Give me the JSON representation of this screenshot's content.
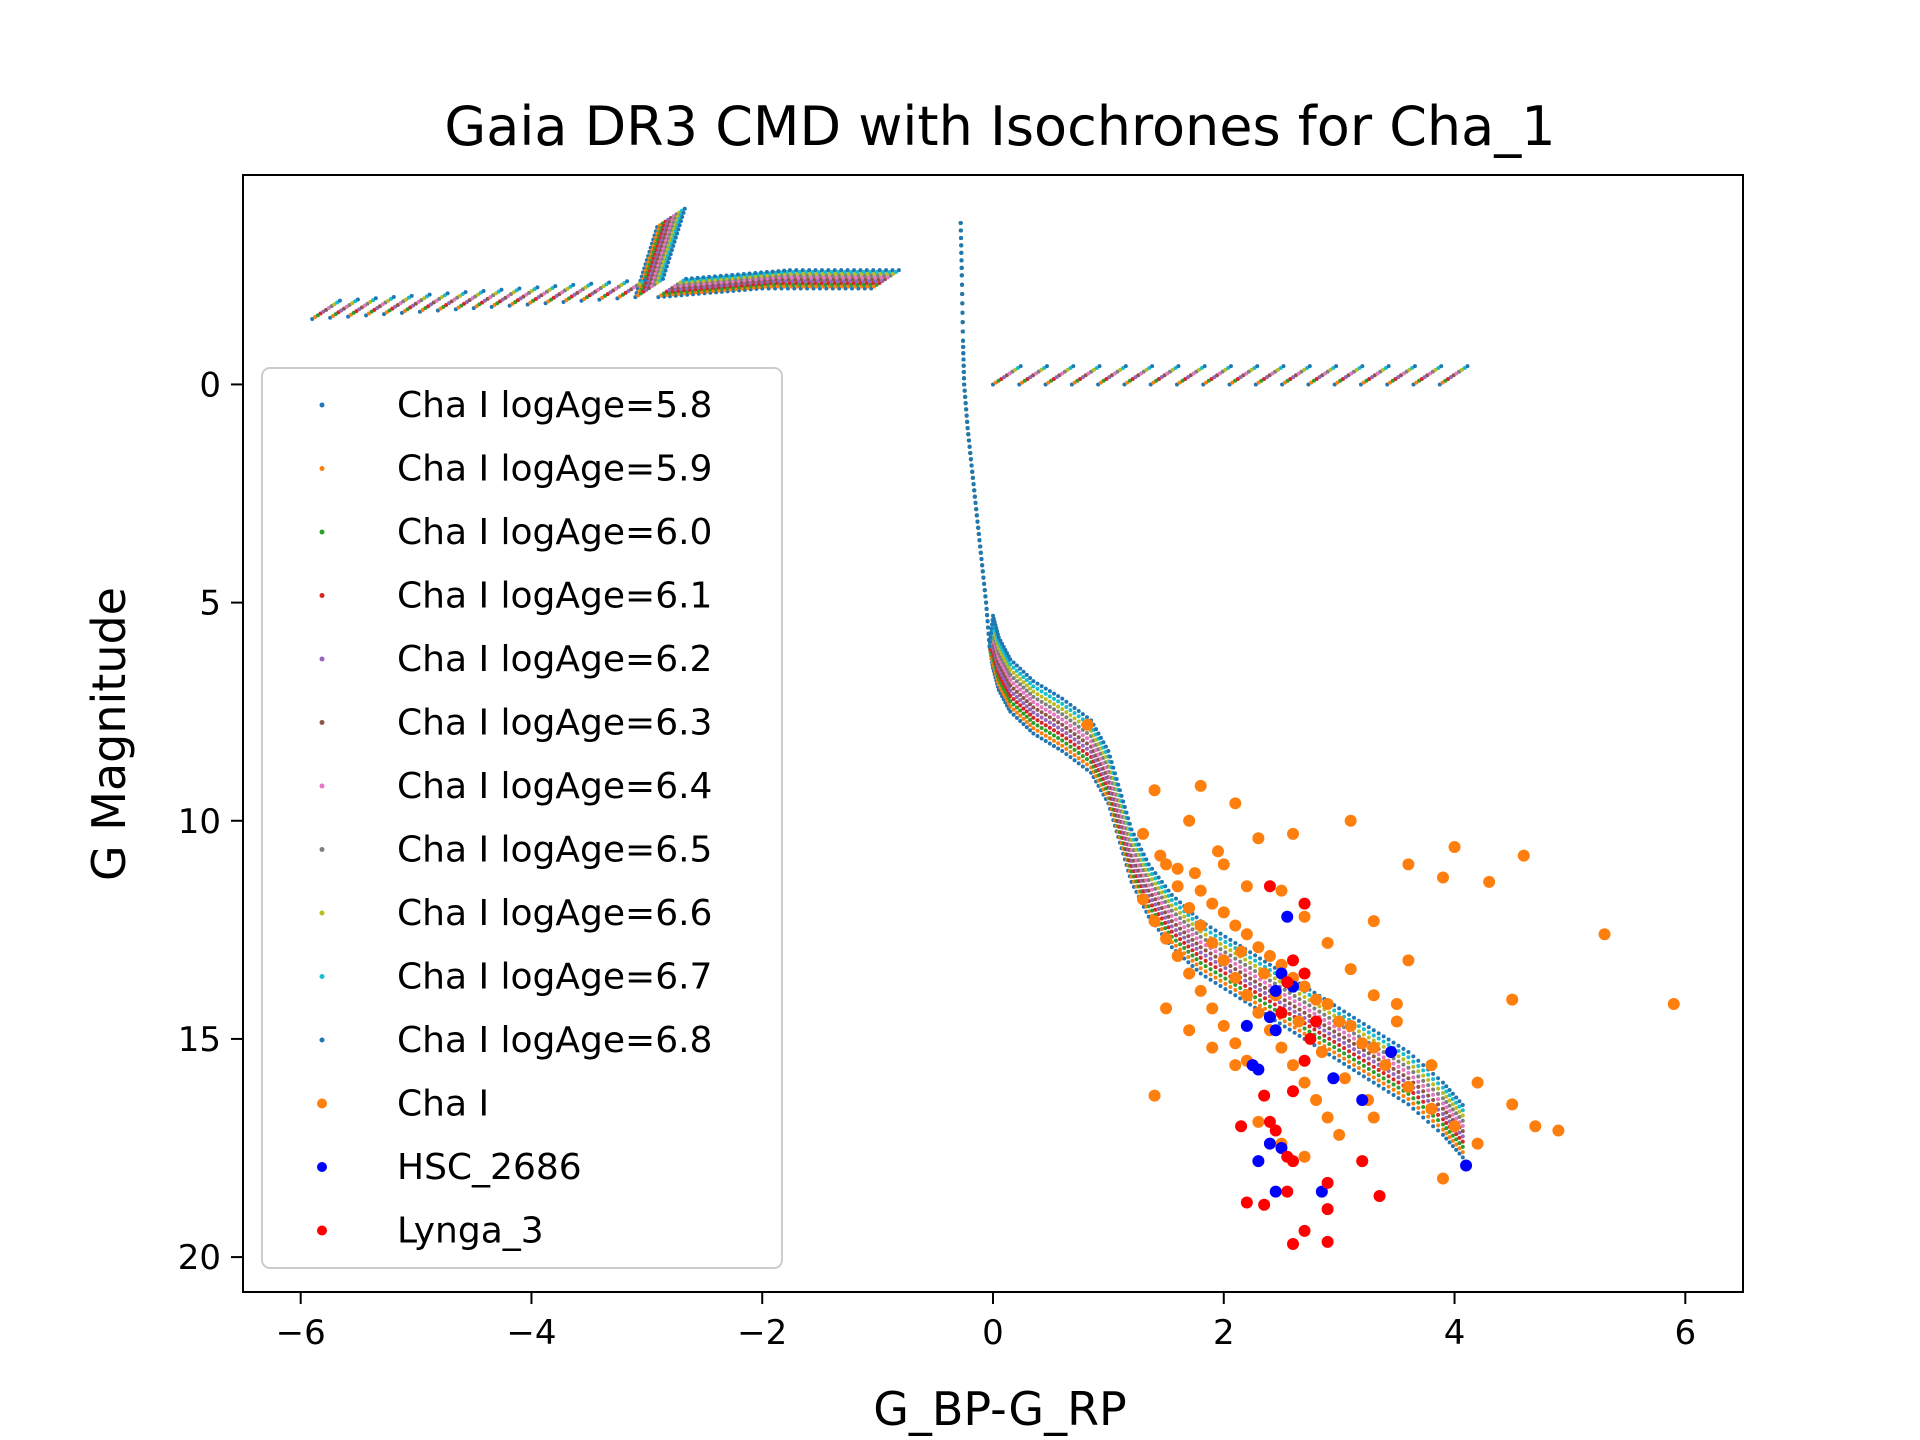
{
  "chart_data": {
    "type": "scatter",
    "title": "Gaia DR3 CMD with Isochrones for Cha_1",
    "xlabel": "G_BP-G_RP",
    "ylabel": "G Magnitude",
    "xlim": [
      -6.5,
      6.5
    ],
    "ylim": [
      20.8,
      -4.8
    ],
    "y_inverted": true,
    "xticks": [
      -6,
      -4,
      -2,
      0,
      2,
      4,
      6
    ],
    "xtick_labels": [
      "−6",
      "−4",
      "−2",
      "0",
      "2",
      "4",
      "6"
    ],
    "yticks": [
      0,
      5,
      10,
      15,
      20
    ],
    "ytick_labels": [
      "0",
      "5",
      "10",
      "15",
      "20"
    ],
    "grid": false,
    "legend_position": "left",
    "isochrones": [
      {
        "name": "Cha I logAge=5.8",
        "color": "#1f77b4",
        "shift": 0.0
      },
      {
        "name": "Cha I logAge=5.9",
        "color": "#ff7f0e",
        "shift": 0.12
      },
      {
        "name": "Cha I logAge=6.0",
        "color": "#2ca02c",
        "shift": 0.24
      },
      {
        "name": "Cha I logAge=6.1",
        "color": "#d62728",
        "shift": 0.36
      },
      {
        "name": "Cha I logAge=6.2",
        "color": "#9467bd",
        "shift": 0.48
      },
      {
        "name": "Cha I logAge=6.3",
        "color": "#8c564b",
        "shift": 0.6
      },
      {
        "name": "Cha I logAge=6.4",
        "color": "#e377c2",
        "shift": 0.72
      },
      {
        "name": "Cha I logAge=6.5",
        "color": "#7f7f7f",
        "shift": 0.84
      },
      {
        "name": "Cha I logAge=6.6",
        "color": "#bcbd22",
        "shift": 0.96
      },
      {
        "name": "Cha I logAge=6.7",
        "color": "#17becf",
        "shift": 1.08
      },
      {
        "name": "Cha I logAge=6.8",
        "color": "#1f77b4",
        "shift": 1.2
      }
    ],
    "isochrone_main_sequence": [
      [
        -0.28,
        -3.7
      ],
      [
        -0.27,
        -2.5
      ],
      [
        -0.26,
        -1.0
      ],
      [
        -0.25,
        0.0
      ],
      [
        -0.22,
        1.0
      ],
      [
        -0.18,
        2.0
      ],
      [
        -0.14,
        3.0
      ],
      [
        -0.1,
        4.0
      ],
      [
        -0.06,
        5.0
      ],
      [
        -0.03,
        6.0
      ],
      [
        0.0,
        6.5
      ],
      [
        0.05,
        7.0
      ],
      [
        0.15,
        7.5
      ],
      [
        0.35,
        8.0
      ],
      [
        0.6,
        8.4
      ],
      [
        0.85,
        8.9
      ],
      [
        1.0,
        9.6
      ],
      [
        1.1,
        10.5
      ],
      [
        1.2,
        11.4
      ],
      [
        1.35,
        12.2
      ],
      [
        1.55,
        12.9
      ],
      [
        1.8,
        13.5
      ],
      [
        2.1,
        14.0
      ],
      [
        2.4,
        14.5
      ],
      [
        2.7,
        15.0
      ],
      [
        3.0,
        15.5
      ],
      [
        3.3,
        16.0
      ],
      [
        3.6,
        16.5
      ],
      [
        3.9,
        17.2
      ],
      [
        4.1,
        17.8
      ]
    ],
    "isochrone_giant_branch": [
      {
        "x": [
          -5.9,
          -3.1,
          -2.9
        ],
        "y": [
          -1.5,
          -2.0,
          -3.7
        ]
      },
      {
        "x": [
          -2.9,
          -2.0,
          -1.0
        ],
        "y": [
          -2.0,
          -2.2,
          -2.2
        ]
      },
      {
        "x": [
          0.0,
          4.1
        ],
        "y": [
          0.0,
          0.0
        ]
      }
    ],
    "cluster_Cha_I": {
      "name": "Cha I",
      "color": "#ff7f0e",
      "points": [
        [
          0.82,
          7.8
        ],
        [
          1.4,
          9.3
        ],
        [
          2.1,
          9.6
        ],
        [
          1.8,
          9.2
        ],
        [
          1.3,
          10.3
        ],
        [
          1.7,
          10.0
        ],
        [
          2.3,
          10.4
        ],
        [
          2.6,
          10.3
        ],
        [
          3.1,
          10.0
        ],
        [
          3.6,
          11.0
        ],
        [
          3.9,
          11.3
        ],
        [
          4.0,
          10.6
        ],
        [
          4.6,
          10.8
        ],
        [
          4.3,
          11.4
        ],
        [
          5.3,
          12.6
        ],
        [
          5.9,
          14.2
        ],
        [
          4.5,
          14.1
        ],
        [
          3.5,
          14.2
        ],
        [
          3.8,
          15.6
        ],
        [
          4.2,
          16.0
        ],
        [
          4.5,
          16.5
        ],
        [
          4.9,
          17.1
        ],
        [
          4.7,
          17.0
        ],
        [
          4.2,
          17.4
        ],
        [
          3.9,
          18.2
        ],
        [
          1.4,
          16.3
        ],
        [
          1.5,
          11.0
        ],
        [
          1.6,
          11.5
        ],
        [
          1.7,
          12.0
        ],
        [
          1.8,
          12.4
        ],
        [
          1.9,
          12.8
        ],
        [
          2.0,
          13.2
        ],
        [
          2.1,
          13.6
        ],
        [
          2.2,
          14.0
        ],
        [
          2.3,
          14.4
        ],
        [
          2.4,
          14.8
        ],
        [
          2.5,
          15.2
        ],
        [
          2.6,
          15.6
        ],
        [
          2.7,
          16.0
        ],
        [
          2.8,
          16.4
        ],
        [
          2.9,
          16.8
        ],
        [
          1.3,
          11.8
        ],
        [
          1.4,
          12.3
        ],
        [
          1.5,
          12.7
        ],
        [
          1.6,
          13.1
        ],
        [
          1.7,
          13.5
        ],
        [
          1.8,
          13.9
        ],
        [
          1.9,
          14.3
        ],
        [
          2.0,
          14.7
        ],
        [
          2.1,
          15.1
        ],
        [
          2.2,
          15.5
        ],
        [
          1.6,
          11.1
        ],
        [
          1.8,
          11.6
        ],
        [
          2.0,
          12.1
        ],
        [
          2.2,
          12.6
        ],
        [
          2.4,
          13.1
        ],
        [
          2.6,
          13.6
        ],
        [
          2.8,
          14.1
        ],
        [
          3.0,
          14.6
        ],
        [
          3.2,
          15.1
        ],
        [
          3.4,
          15.6
        ],
        [
          3.6,
          16.1
        ],
        [
          3.8,
          16.6
        ],
        [
          4.0,
          17.0
        ],
        [
          2.5,
          11.6
        ],
        [
          2.7,
          12.2
        ],
        [
          2.9,
          12.8
        ],
        [
          3.1,
          13.4
        ],
        [
          3.3,
          14.0
        ],
        [
          3.5,
          14.6
        ],
        [
          3.3,
          12.3
        ],
        [
          3.6,
          13.2
        ],
        [
          2.3,
          16.9
        ],
        [
          2.5,
          17.4
        ],
        [
          2.7,
          17.7
        ],
        [
          3.0,
          17.2
        ],
        [
          3.3,
          16.8
        ],
        [
          2.1,
          15.6
        ],
        [
          1.9,
          15.2
        ],
        [
          1.7,
          14.8
        ],
        [
          1.5,
          14.3
        ],
        [
          2.0,
          11.0
        ],
        [
          2.2,
          11.5
        ],
        [
          1.9,
          11.9
        ],
        [
          2.1,
          12.4
        ],
        [
          2.3,
          12.9
        ],
        [
          2.5,
          13.3
        ],
        [
          2.7,
          13.8
        ],
        [
          2.9,
          14.2
        ],
        [
          3.1,
          14.7
        ],
        [
          3.3,
          15.2
        ],
        [
          1.45,
          10.8
        ],
        [
          1.75,
          11.2
        ],
        [
          1.95,
          10.7
        ],
        [
          2.15,
          13.0
        ],
        [
          2.35,
          13.5
        ],
        [
          2.45,
          14.0
        ],
        [
          2.65,
          14.6
        ],
        [
          2.85,
          15.3
        ],
        [
          3.05,
          15.9
        ],
        [
          3.25,
          16.4
        ]
      ]
    },
    "cluster_HSC_2686": {
      "name": "HSC_2686",
      "color": "#0000ff",
      "points": [
        [
          2.55,
          12.2
        ],
        [
          2.5,
          13.5
        ],
        [
          2.45,
          13.9
        ],
        [
          2.6,
          13.8
        ],
        [
          2.4,
          14.5
        ],
        [
          2.45,
          14.8
        ],
        [
          2.2,
          14.7
        ],
        [
          2.25,
          15.6
        ],
        [
          2.3,
          15.7
        ],
        [
          3.45,
          15.3
        ],
        [
          2.95,
          15.9
        ],
        [
          3.2,
          16.4
        ],
        [
          2.4,
          17.4
        ],
        [
          2.5,
          17.5
        ],
        [
          2.3,
          17.8
        ],
        [
          2.45,
          18.5
        ],
        [
          2.85,
          18.5
        ],
        [
          4.1,
          17.9
        ]
      ]
    },
    "cluster_Lynga_3": {
      "name": "Lynga_3",
      "color": "#ff0000",
      "points": [
        [
          2.4,
          11.5
        ],
        [
          2.7,
          11.9
        ],
        [
          2.6,
          13.2
        ],
        [
          2.55,
          13.7
        ],
        [
          2.7,
          13.5
        ],
        [
          2.8,
          14.6
        ],
        [
          2.5,
          14.4
        ],
        [
          2.75,
          15.0
        ],
        [
          2.7,
          15.5
        ],
        [
          2.6,
          16.2
        ],
        [
          2.35,
          16.3
        ],
        [
          2.15,
          17.0
        ],
        [
          2.4,
          16.9
        ],
        [
          2.45,
          17.1
        ],
        [
          2.55,
          17.7
        ],
        [
          2.6,
          17.8
        ],
        [
          3.2,
          17.8
        ],
        [
          2.9,
          18.3
        ],
        [
          2.55,
          18.5
        ],
        [
          2.2,
          18.75
        ],
        [
          2.35,
          18.8
        ],
        [
          2.9,
          18.9
        ],
        [
          3.35,
          18.6
        ],
        [
          2.7,
          19.4
        ],
        [
          2.6,
          19.7
        ],
        [
          2.9,
          19.65
        ]
      ]
    },
    "legend": [
      "Cha I logAge=5.8",
      "Cha I logAge=5.9",
      "Cha I logAge=6.0",
      "Cha I logAge=6.1",
      "Cha I logAge=6.2",
      "Cha I logAge=6.3",
      "Cha I logAge=6.4",
      "Cha I logAge=6.5",
      "Cha I logAge=6.6",
      "Cha I logAge=6.7",
      "Cha I logAge=6.8",
      "Cha I",
      "HSC_2686",
      "Lynga_3"
    ]
  }
}
